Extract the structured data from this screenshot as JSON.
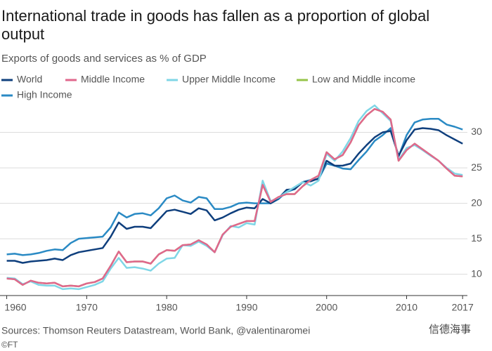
{
  "chart_data": {
    "type": "line",
    "title": "International trade in goods has fallen as a proportion of global output",
    "subtitle": "Exports of goods and services as % of GDP",
    "source": "Sources: Thomson Reuters Datastream, World Bank, @valentinaromei",
    "credit": "©FT",
    "watermark": "信德海事",
    "x": [
      1960,
      1961,
      1962,
      1963,
      1964,
      1965,
      1966,
      1967,
      1968,
      1969,
      1970,
      1971,
      1972,
      1973,
      1974,
      1975,
      1976,
      1977,
      1978,
      1979,
      1980,
      1981,
      1982,
      1983,
      1984,
      1985,
      1986,
      1987,
      1988,
      1989,
      1990,
      1991,
      1992,
      1993,
      1994,
      1995,
      1996,
      1997,
      1998,
      1999,
      2000,
      2001,
      2002,
      2003,
      2004,
      2005,
      2006,
      2007,
      2008,
      2009,
      2010,
      2011,
      2012,
      2013,
      2014,
      2015,
      2016,
      2017
    ],
    "xlim": [
      1959.6,
      2017.6
    ],
    "xticks": [
      1960,
      1970,
      1980,
      1990,
      2000,
      2010,
      2017
    ],
    "ylim": [
      7,
      35
    ],
    "yticks": [
      10,
      15,
      20,
      25,
      30
    ],
    "grid": true,
    "series": [
      {
        "name": "World",
        "color": "#0f3f7d",
        "values": [
          11.9,
          11.9,
          11.6,
          11.8,
          11.9,
          12.0,
          12.2,
          12.0,
          12.7,
          13.1,
          13.3,
          13.5,
          13.7,
          15.3,
          17.3,
          16.4,
          16.7,
          16.7,
          16.5,
          17.7,
          18.9,
          19.1,
          18.8,
          18.5,
          19.3,
          19.0,
          17.6,
          18.0,
          18.6,
          19.1,
          19.4,
          19.3,
          20.6,
          20.0,
          20.7,
          21.9,
          22.0,
          23.0,
          23.1,
          23.5,
          26.0,
          25.3,
          25.3,
          25.6,
          27.0,
          28.2,
          29.3,
          30.0,
          30.2,
          26.7,
          28.9,
          30.4,
          30.6,
          30.5,
          30.3,
          29.6,
          29.0,
          28.4
        ]
      },
      {
        "name": "Middle Income",
        "color": "#e0678c",
        "values": [
          9.4,
          9.3,
          8.5,
          9.1,
          8.8,
          8.7,
          8.8,
          8.3,
          8.4,
          8.3,
          8.7,
          8.9,
          9.4,
          11.2,
          13.2,
          11.7,
          11.8,
          11.8,
          11.5,
          12.8,
          13.4,
          13.3,
          14.1,
          14.2,
          14.8,
          14.2,
          13.1,
          15.6,
          16.7,
          17.1,
          17.5,
          17.5,
          22.6,
          20.2,
          20.9,
          21.3,
          21.3,
          22.4,
          23.3,
          23.9,
          27.2,
          26.2,
          26.8,
          28.6,
          31.0,
          32.4,
          33.3,
          32.9,
          31.8,
          26.0,
          27.5,
          28.4,
          27.6,
          26.8,
          26.0,
          24.9,
          23.9,
          23.8
        ]
      },
      {
        "name": "Upper Middle Income",
        "color": "#7fd6e6",
        "values": [
          9.5,
          9.4,
          8.6,
          9.0,
          8.5,
          8.4,
          8.4,
          7.9,
          8.0,
          7.9,
          8.2,
          8.5,
          9.0,
          10.8,
          12.3,
          10.9,
          11.0,
          10.8,
          10.5,
          11.5,
          12.2,
          12.3,
          14.1,
          14.0,
          14.6,
          14.0,
          13.1,
          15.5,
          16.8,
          16.6,
          17.2,
          17.0,
          23.2,
          20.3,
          20.8,
          21.6,
          22.3,
          23.0,
          22.5,
          23.2,
          27.0,
          26.0,
          27.3,
          29.2,
          31.6,
          33.0,
          33.8,
          32.7,
          31.6,
          26.1,
          27.8,
          28.2,
          27.5,
          26.7,
          26.0,
          25.0,
          24.2,
          24.0
        ]
      },
      {
        "name": "Low and Middle income",
        "color": "#96c44a",
        "values": [
          9.4,
          9.3,
          8.5,
          9.1,
          8.8,
          8.7,
          8.8,
          8.3,
          8.4,
          8.3,
          8.7,
          8.9,
          9.4,
          11.2,
          13.2,
          11.7,
          11.8,
          11.8,
          11.5,
          12.8,
          13.4,
          13.3,
          14.1,
          14.2,
          14.8,
          14.2,
          13.1,
          15.6,
          16.7,
          17.1,
          17.5,
          17.5,
          22.6,
          20.2,
          20.9,
          21.3,
          21.3,
          22.4,
          23.3,
          23.9,
          27.2,
          26.2,
          26.8,
          28.6,
          31.0,
          32.4,
          33.3,
          32.9,
          31.8,
          26.0,
          27.5,
          28.4,
          27.6,
          26.8,
          26.0,
          24.9,
          23.9,
          23.8
        ]
      },
      {
        "name": "High Income",
        "color": "#2a8ac4",
        "values": [
          12.8,
          12.9,
          12.7,
          12.8,
          13.0,
          13.3,
          13.5,
          13.4,
          14.4,
          15.0,
          15.1,
          15.2,
          15.3,
          16.6,
          18.7,
          18.0,
          18.5,
          18.6,
          18.3,
          19.3,
          20.7,
          21.1,
          20.4,
          20.1,
          20.9,
          20.7,
          19.2,
          19.2,
          19.5,
          20.0,
          20.1,
          20.0,
          20.0,
          20.0,
          20.6,
          21.6,
          22.0,
          23.0,
          23.3,
          23.4,
          25.6,
          25.3,
          24.9,
          24.8,
          26.1,
          27.3,
          28.8,
          29.6,
          30.6,
          26.6,
          29.6,
          31.4,
          31.8,
          31.9,
          31.9,
          31.1,
          30.8,
          30.4
        ]
      }
    ]
  }
}
